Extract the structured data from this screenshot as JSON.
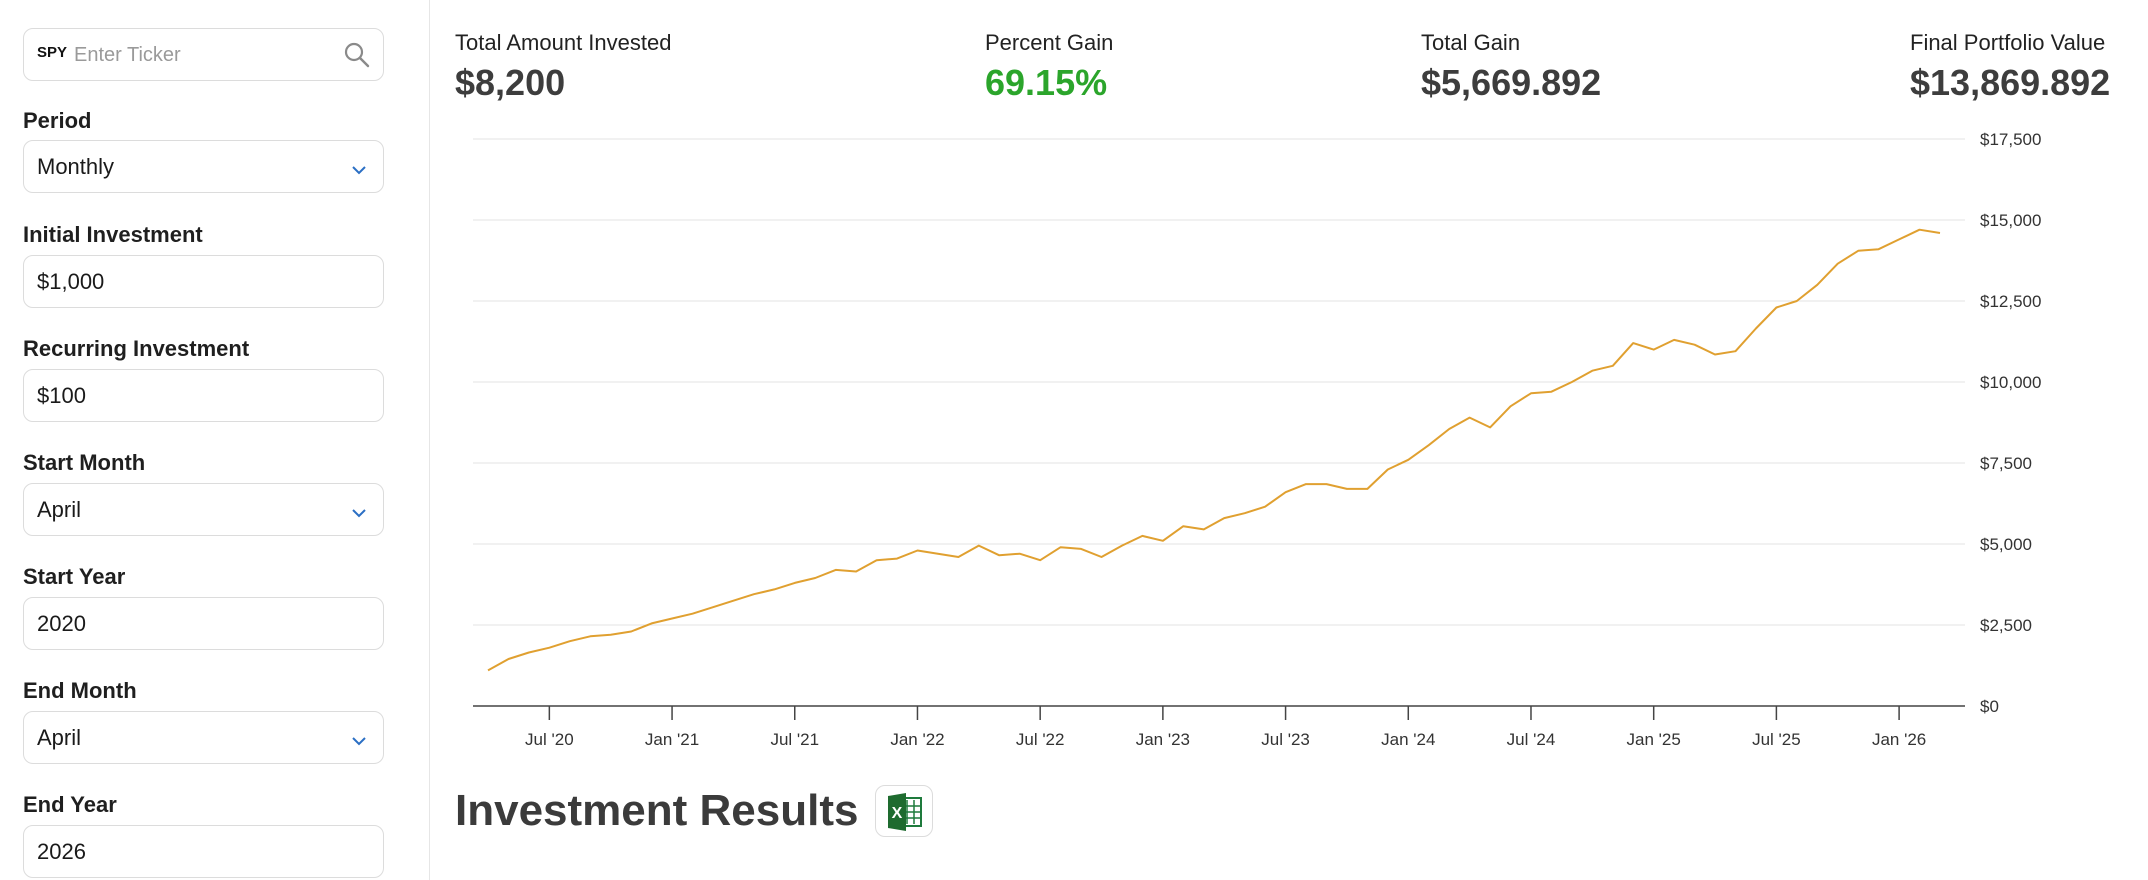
{
  "sidebar": {
    "ticker": {
      "tag": "SPY",
      "placeholder": "Enter Ticker"
    },
    "period": {
      "label": "Period",
      "value": "Monthly"
    },
    "initial": {
      "label": "Initial Investment",
      "value": "$1,000"
    },
    "recurring": {
      "label": "Recurring Investment",
      "value": "$100"
    },
    "start_month": {
      "label": "Start Month",
      "value": "April"
    },
    "start_year": {
      "label": "Start Year",
      "value": "2020"
    },
    "end_month": {
      "label": "End Month",
      "value": "April"
    },
    "end_year": {
      "label": "End Year",
      "value": "2026"
    }
  },
  "stats": {
    "invested": {
      "label": "Total Amount Invested",
      "value": "$8,200"
    },
    "percent": {
      "label": "Percent Gain",
      "value": "69.15%"
    },
    "gain": {
      "label": "Total Gain",
      "value": "$5,669.892"
    },
    "final": {
      "label": "Final Portfolio Value",
      "value": "$13,869.892"
    }
  },
  "results": {
    "title": "Investment Results",
    "export_icon": "excel-icon"
  },
  "colors": {
    "line": "#e0a030",
    "gain_green": "#2ba52b",
    "accent": "#2b6fc4"
  },
  "chart_data": {
    "type": "line",
    "ylim": [
      0,
      17500
    ],
    "yticks": [
      "$0",
      "$2,500",
      "$5,000",
      "$7,500",
      "$10,000",
      "$12,500",
      "$15,000",
      "$17,500"
    ],
    "xticks": [
      "Jul '20",
      "Jan '21",
      "Jul '21",
      "Jan '22",
      "Jul '22",
      "Jan '23",
      "Jul '23",
      "Jan '24",
      "Jul '24",
      "Jan '25",
      "Jul '25",
      "Jan '26"
    ],
    "grid": true,
    "series": [
      {
        "x": [
          "2020-04",
          "2020-05",
          "2020-06",
          "2020-07",
          "2020-08",
          "2020-09",
          "2020-10",
          "2020-11",
          "2020-12",
          "2021-01",
          "2021-02",
          "2021-03",
          "2021-04",
          "2021-05",
          "2021-06",
          "2021-07",
          "2021-08",
          "2021-09",
          "2021-10",
          "2021-11",
          "2021-12",
          "2022-01",
          "2022-02",
          "2022-03",
          "2022-04",
          "2022-05",
          "2022-06",
          "2022-07",
          "2022-08",
          "2022-09",
          "2022-10",
          "2022-11",
          "2022-12",
          "2023-01",
          "2023-02",
          "2023-03",
          "2023-04",
          "2023-05",
          "2023-06",
          "2023-07",
          "2023-08",
          "2023-09",
          "2023-10",
          "2023-11",
          "2023-12",
          "2024-01",
          "2024-02",
          "2024-03",
          "2024-04",
          "2024-05",
          "2024-06",
          "2024-07",
          "2024-08",
          "2024-09",
          "2024-10",
          "2024-11",
          "2024-12",
          "2025-01",
          "2025-02",
          "2025-03",
          "2025-04",
          "2025-05",
          "2025-06",
          "2025-07",
          "2025-08",
          "2025-09",
          "2025-10",
          "2025-11",
          "2025-12",
          "2026-01",
          "2026-02",
          "2026-03"
        ],
        "values": [
          1100,
          1450,
          1650,
          1800,
          2000,
          2150,
          2200,
          2300,
          2550,
          2700,
          2850,
          3050,
          3250,
          3450,
          3600,
          3800,
          3950,
          4200,
          4150,
          4500,
          4550,
          4800,
          4700,
          4600,
          4950,
          4650,
          4700,
          4500,
          4900,
          4850,
          4600,
          4950,
          5250,
          5100,
          5550,
          5450,
          5800,
          5950,
          6150,
          6600,
          6850,
          6850,
          6700,
          6700,
          7300,
          7600,
          8050,
          8550,
          8900,
          8600,
          9250,
          9650,
          9700,
          10000,
          10350,
          10500,
          11200,
          11000,
          11300,
          11150,
          10850,
          10950,
          11650,
          12300,
          12500,
          13000,
          13650,
          14050,
          14100,
          14400,
          14700,
          14600
        ]
      }
    ]
  }
}
